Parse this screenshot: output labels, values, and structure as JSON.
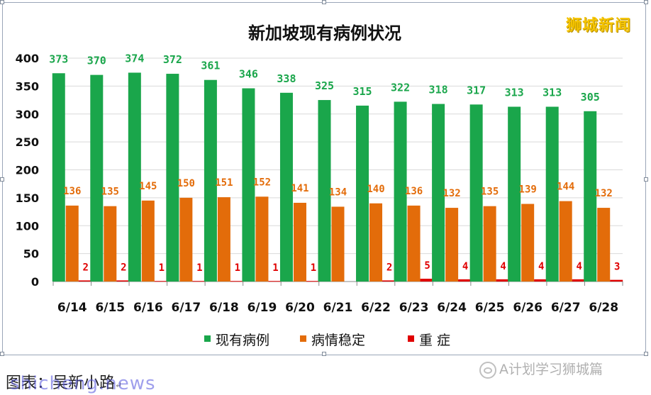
{
  "brand_text": "狮城新闻",
  "caption": {
    "text": "图表：吴新小路",
    "return_mark": "↵"
  },
  "watermark": "shicheng.news",
  "wechat_text": "A计划学习狮城篇",
  "colors": {
    "current": "#1aa64b",
    "stable": "#e36c0a",
    "severe": "#e00000",
    "label_current": "#1aa64b",
    "label_stable": "#e36c0a",
    "label_severe": "#e00000"
  },
  "chart_data": {
    "type": "bar",
    "title": "新加坡现有病例状况",
    "categories": [
      "6/14",
      "6/15",
      "6/16",
      "6/17",
      "6/18",
      "6/19",
      "6/20",
      "6/21",
      "6/22",
      "6/23",
      "6/24",
      "6/25",
      "6/26",
      "6/27",
      "6/28"
    ],
    "series": [
      {
        "name": "现有病例",
        "values": [
          373,
          370,
          374,
          372,
          361,
          346,
          338,
          325,
          315,
          322,
          318,
          317,
          313,
          313,
          305
        ]
      },
      {
        "name": "病情稳定",
        "values": [
          136,
          135,
          145,
          150,
          151,
          152,
          141,
          134,
          140,
          136,
          132,
          135,
          139,
          144,
          132
        ]
      },
      {
        "name": "重  症",
        "values": [
          2,
          2,
          1,
          1,
          1,
          1,
          1,
          null,
          2,
          5,
          4,
          4,
          4,
          4,
          3
        ]
      }
    ],
    "ylim": [
      0,
      400
    ],
    "yticks": [
      0,
      50,
      100,
      150,
      200,
      250,
      300,
      350,
      400
    ],
    "grid": true,
    "legend": "bottom"
  }
}
